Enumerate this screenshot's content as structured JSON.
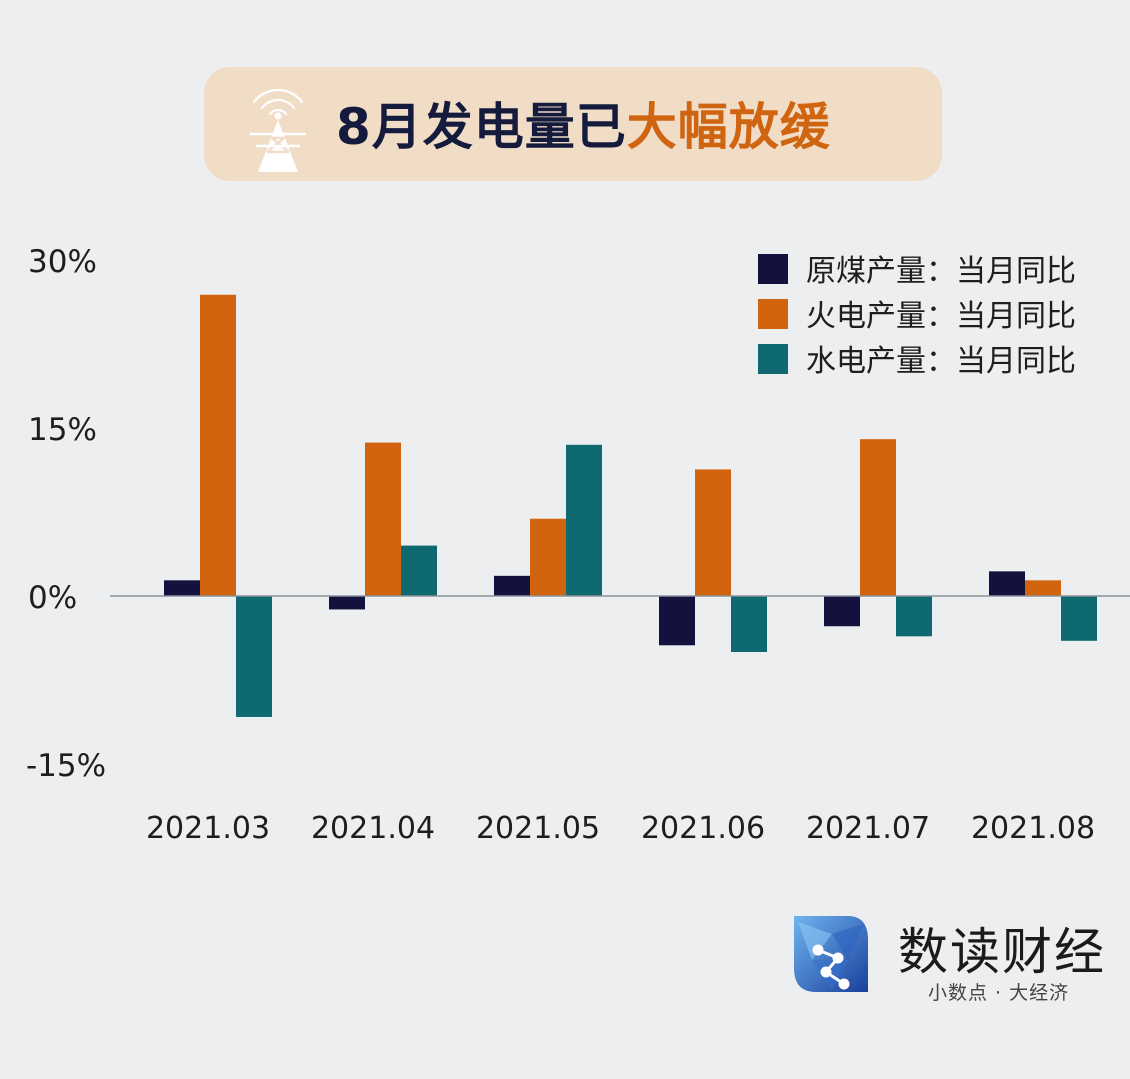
{
  "title": {
    "main": "8月发电量已",
    "highlight": "大幅放缓"
  },
  "chart_data": {
    "type": "bar",
    "categories": [
      "2021.03",
      "2021.04",
      "2021.05",
      "2021.06",
      "2021.07",
      "2021.08"
    ],
    "series": [
      {
        "name": "原煤产量：当月同比",
        "color": "#12123d",
        "values": [
          1.4,
          -1.2,
          1.8,
          -4.4,
          -2.7,
          2.2
        ]
      },
      {
        "name": "火电产量：当月同比",
        "color": "#d2640f",
        "values": [
          26.9,
          13.7,
          6.9,
          11.3,
          14.0,
          1.4
        ]
      },
      {
        "name": "水电产量：当月同比",
        "color": "#0e6a70",
        "values": [
          -10.8,
          4.5,
          13.5,
          -5.0,
          -3.6,
          -4.0
        ]
      }
    ],
    "y_ticks": [
      {
        "value": 30,
        "label": "30%"
      },
      {
        "value": 15,
        "label": "15%"
      },
      {
        "value": 0,
        "label": "0%"
      },
      {
        "value": -15,
        "label": "-15%"
      }
    ],
    "ylim": [
      -15,
      30
    ],
    "grid": false,
    "legend_position": "top-right"
  },
  "brand": {
    "name": "数读财经",
    "slogan": "小数点 · 大经济"
  }
}
